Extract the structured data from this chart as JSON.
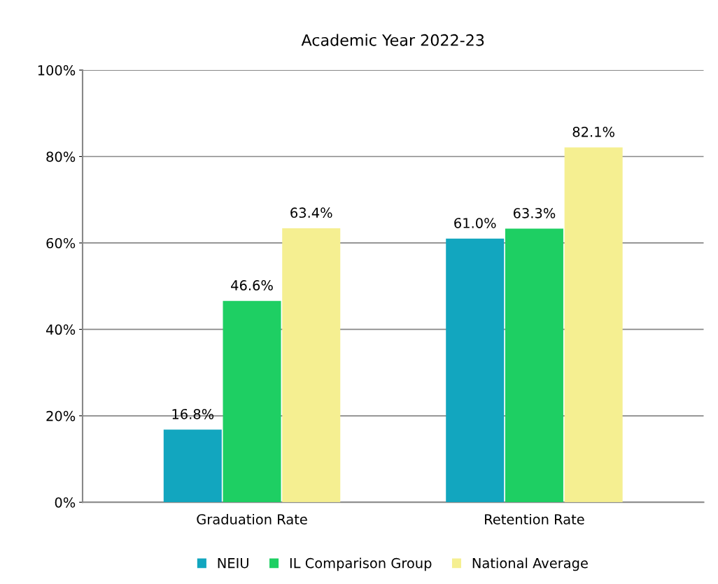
{
  "chart_data": {
    "type": "bar",
    "title": "Academic Year 2022-23",
    "categories": [
      "Graduation Rate",
      "Retention Rate"
    ],
    "series": [
      {
        "name": "NEIU",
        "color": "#12a6bf",
        "values": [
          16.8,
          61.0
        ],
        "value_labels": [
          "16.8%",
          "61.0%"
        ]
      },
      {
        "name": "IL Comparison Group",
        "color": "#1ecf63",
        "values": [
          46.6,
          63.3
        ],
        "value_labels": [
          "46.6%",
          "63.3%"
        ]
      },
      {
        "name": "National Average",
        "color": "#f5ef91",
        "values": [
          63.4,
          82.1
        ],
        "value_labels": [
          "63.4%",
          "82.1%"
        ]
      }
    ],
    "ylim": [
      0,
      100
    ],
    "yticks": [
      {
        "value": 0,
        "label": "0%"
      },
      {
        "value": 20,
        "label": "20%"
      },
      {
        "value": 40,
        "label": "40%"
      },
      {
        "value": 60,
        "label": "60%"
      },
      {
        "value": 80,
        "label": "80%"
      },
      {
        "value": 100,
        "label": "100%"
      }
    ],
    "grid": "y",
    "legend": "bottom"
  }
}
